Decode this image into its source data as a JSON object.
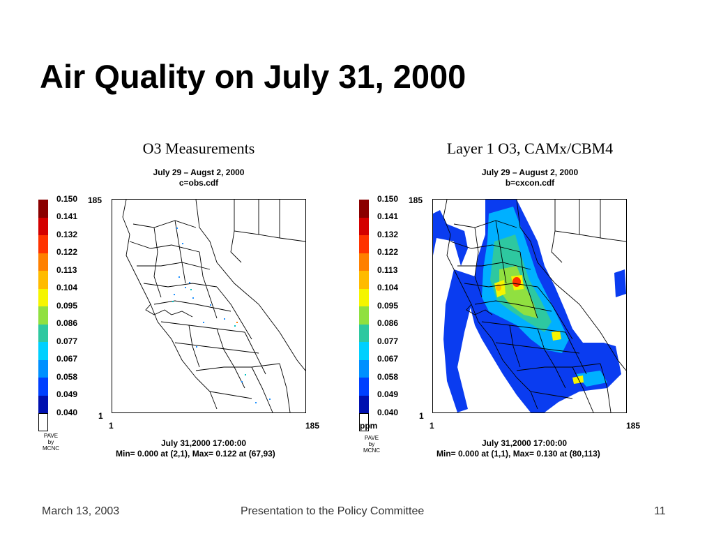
{
  "slide": {
    "title": "Air Quality on July 31, 2000"
  },
  "colorbar": {
    "ticks": [
      "0.150",
      "0.141",
      "0.132",
      "0.122",
      "0.113",
      "0.104",
      "0.095",
      "0.086",
      "0.077",
      "0.067",
      "0.058",
      "0.049",
      "0.040"
    ],
    "colors": [
      "#8b0000",
      "#d40000",
      "#ff3300",
      "#ff8000",
      "#ffbb00",
      "#f5f500",
      "#90e040",
      "#2ec8a0",
      "#00d0ff",
      "#0090ff",
      "#0040ff",
      "#0010b0",
      "#ffffff"
    ]
  },
  "left_panel": {
    "title": "O3 Measurements",
    "subtitle1": "July 29 – Augst 2, 2000",
    "subtitle2": "c=obs.cdf",
    "y_max": "185",
    "y_min": "1",
    "x_min": "1",
    "x_max": "185",
    "datetime": "July 31,2000 17:00:00",
    "minmax": "Min=   0.000 at (2,1), Max=   0.122 at (67,93)",
    "pave": [
      "PAVE",
      "by",
      "MCNC"
    ]
  },
  "right_panel": {
    "title": "Layer 1 O3, CAMx/CBM4",
    "subtitle1": "July 29 – August 2, 2000",
    "subtitle2": "b=cxcon.cdf",
    "unit": "ppm",
    "y_max": "185",
    "y_min": "1",
    "x_min": "1",
    "x_max": "185",
    "datetime": "July 31,2000 17:00:00",
    "minmax": "Min=   0.000 at (1,1), Max=   0.130 at (80,113)",
    "pave": [
      "PAVE",
      "by",
      "MCNC"
    ]
  },
  "footer": {
    "date": "March 13, 2003",
    "center": "Presentation to the Policy Committee",
    "page": "11"
  }
}
